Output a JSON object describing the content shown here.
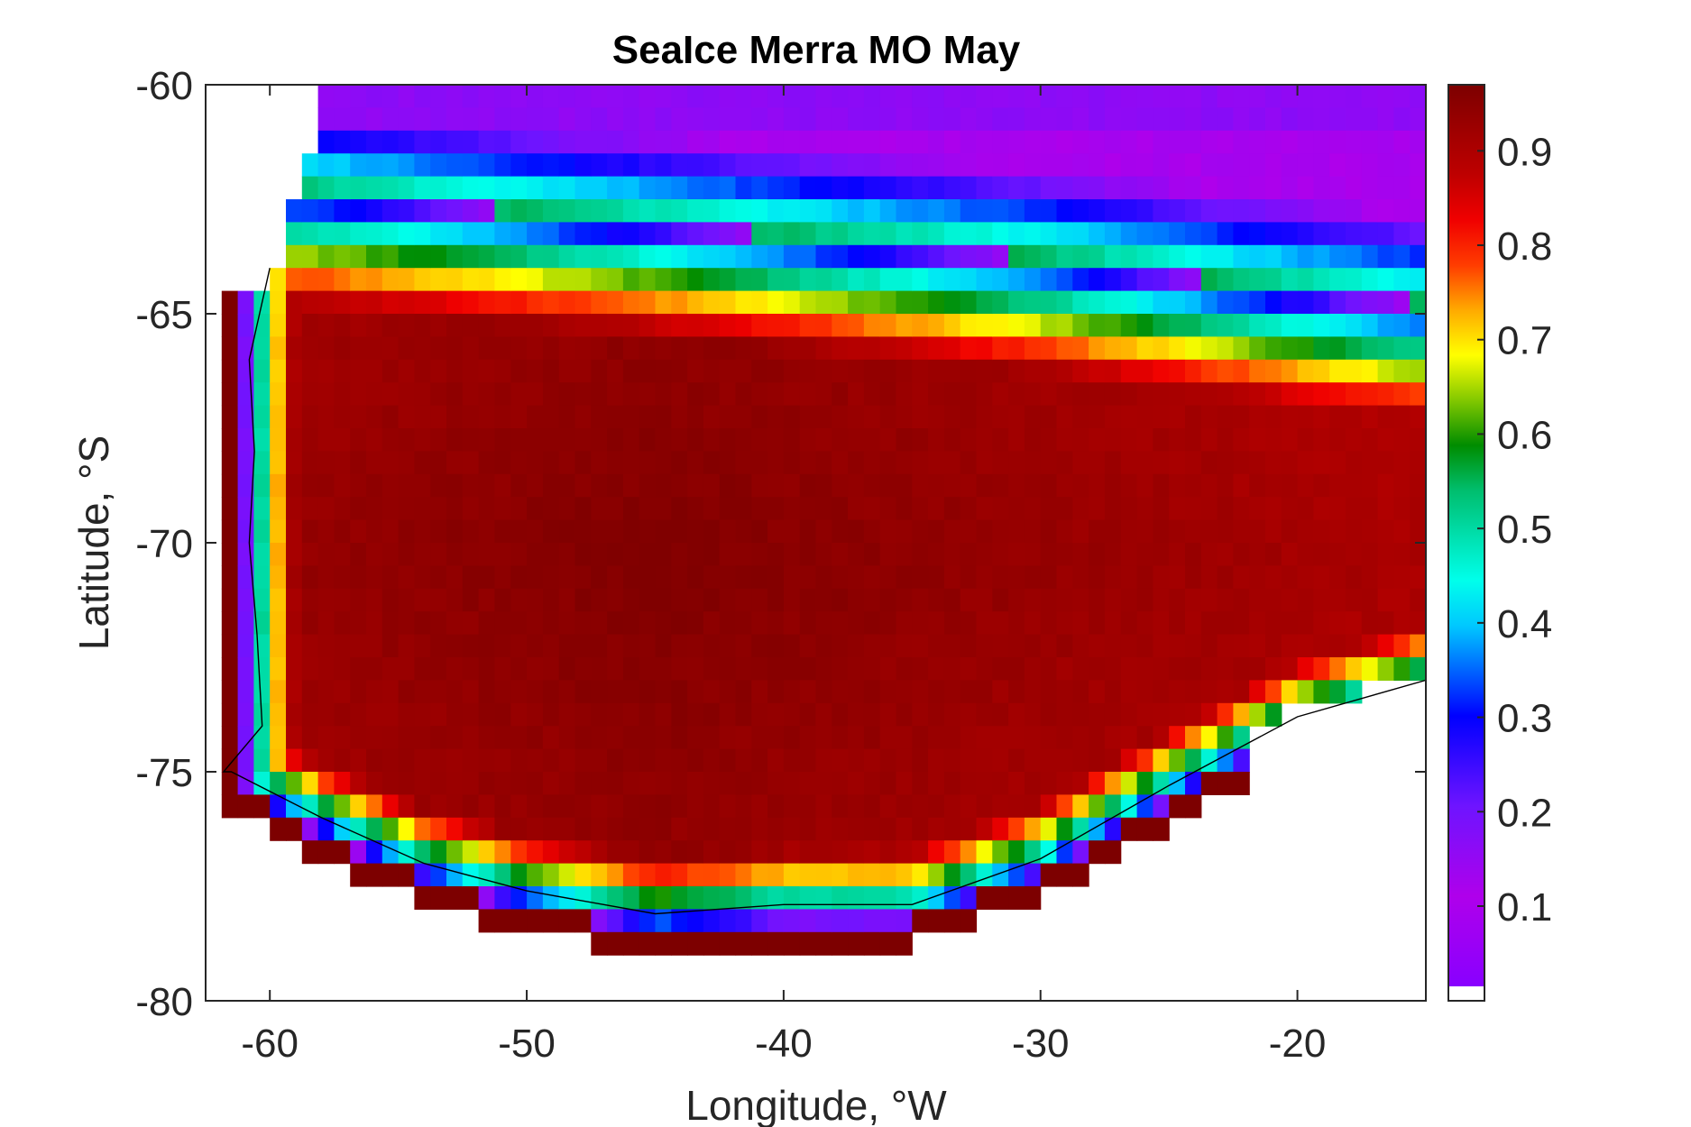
{
  "chart_data": {
    "type": "heatmap",
    "title": "SeaIce Merra MO May",
    "xlabel": "Longitude, °W",
    "ylabel": "Latitude, °S",
    "xlim": [
      -62.5,
      -15
    ],
    "ylim": [
      -80,
      -60
    ],
    "xticks": [
      -60,
      -50,
      -40,
      -30,
      -20
    ],
    "xtick_labels": [
      "-60",
      "-50",
      "-40",
      "-30",
      "-20"
    ],
    "yticks": [
      -60,
      -65,
      -70,
      -75,
      -80
    ],
    "ytick_labels": [
      "-60",
      "-65",
      "-70",
      "-75",
      "-80"
    ],
    "colorbar": {
      "colormap": "rainbow (violet to dark red)",
      "range": [
        0.015,
        0.97
      ],
      "ticks": [
        0.1,
        0.2,
        0.3,
        0.4,
        0.5,
        0.6,
        0.7,
        0.8,
        0.9
      ],
      "tick_labels": [
        "0.1",
        "0.2",
        "0.3",
        "0.4",
        "0.5",
        "0.6",
        "0.7",
        "0.8",
        "0.9"
      ],
      "below_range_color": "#ffffff"
    },
    "grid_resolution": {
      "lon_step": 0.625,
      "lat_step": 0.5
    },
    "field_description": {
      "northern_edge_lat": -60,
      "east_ice_edge": [
        {
          "lon": -60,
          "lat": -62.3
        },
        {
          "lon": -50,
          "lat": -62.8
        },
        {
          "lon": -40,
          "lat": -63.3
        },
        {
          "lon": -30,
          "lat": -63.8
        },
        {
          "lon": -20,
          "lat": -64.5
        },
        {
          "lon": -15,
          "lat": -64.8
        }
      ],
      "west_coast": [
        {
          "lat": -64,
          "lon": -60.0
        },
        {
          "lat": -66,
          "lon": -60.8
        },
        {
          "lat": -68,
          "lon": -60.6
        },
        {
          "lat": -70,
          "lon": -60.8
        },
        {
          "lat": -72,
          "lon": -60.5
        },
        {
          "lat": -74,
          "lon": -60.3
        },
        {
          "lat": -75,
          "lon": -61.8
        }
      ],
      "south_coast": [
        {
          "lon": -61.5,
          "lat": -75.0
        },
        {
          "lon": -58,
          "lat": -76.0
        },
        {
          "lon": -54,
          "lat": -77.0
        },
        {
          "lon": -50,
          "lat": -77.6
        },
        {
          "lon": -45,
          "lat": -78.1
        },
        {
          "lon": -40,
          "lat": -77.9
        },
        {
          "lon": -35,
          "lat": -77.9
        },
        {
          "lon": -30,
          "lat": -76.9
        },
        {
          "lon": -25,
          "lat": -75.3
        },
        {
          "lon": -20,
          "lat": -73.8
        },
        {
          "lon": -15,
          "lat": -73.0
        }
      ],
      "interior_max_concentration": 0.965,
      "interior_core_center": {
        "lon": -45,
        "lat": -70.5
      }
    }
  }
}
